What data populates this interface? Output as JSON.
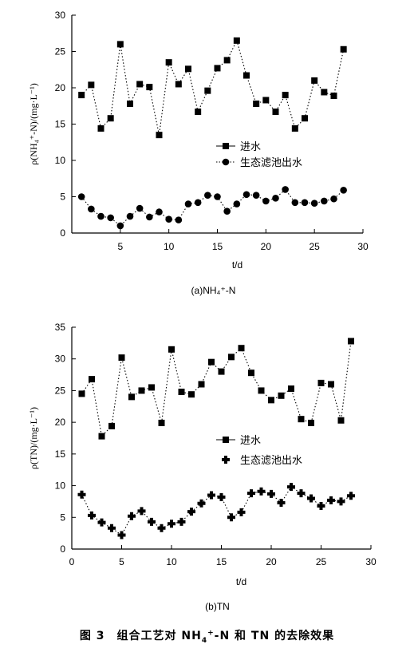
{
  "chart_data": [
    {
      "type": "line",
      "panel_label": "(a)NH₄⁺-N",
      "xlabel": "t/d",
      "ylabel": "ρ(NH₄⁺-N)/(mg·L⁻¹)",
      "xlim": [
        0,
        30
      ],
      "ylim": [
        0,
        30
      ],
      "xticks": [
        "5",
        "10",
        "15",
        "20",
        "25",
        "30"
      ],
      "yticks": [
        "0",
        "5",
        "10",
        "15",
        "20",
        "25",
        "30"
      ],
      "legend_position": "right-middle",
      "series": [
        {
          "name": "进水",
          "marker": "square",
          "x": [
            1,
            2,
            3,
            4,
            5,
            6,
            7,
            8,
            9,
            10,
            11,
            12,
            13,
            14,
            15,
            16,
            17,
            18,
            19,
            20,
            21,
            22,
            23,
            24,
            25,
            26,
            27,
            28
          ],
          "values": [
            19.0,
            20.4,
            14.4,
            15.8,
            26.0,
            17.8,
            20.5,
            20.1,
            13.5,
            23.5,
            20.5,
            22.6,
            16.7,
            19.6,
            22.7,
            23.8,
            26.5,
            21.7,
            17.8,
            18.3,
            16.7,
            19.0,
            14.4,
            15.8,
            21.0,
            19.4,
            18.9,
            25.3
          ]
        },
        {
          "name": "生态滤池出水",
          "marker": "circle",
          "x": [
            1,
            2,
            3,
            4,
            5,
            6,
            7,
            8,
            9,
            10,
            11,
            12,
            13,
            14,
            15,
            16,
            17,
            18,
            19,
            20,
            21,
            22,
            23,
            24,
            25,
            26,
            27,
            28
          ],
          "values": [
            5.0,
            3.3,
            2.3,
            2.1,
            1.0,
            2.3,
            3.4,
            2.2,
            2.9,
            1.9,
            1.8,
            4.0,
            4.2,
            5.2,
            5.0,
            3.0,
            4.0,
            5.3,
            5.2,
            4.4,
            4.8,
            6.0,
            4.2,
            4.2,
            4.1,
            4.4,
            4.7,
            5.9
          ]
        }
      ]
    },
    {
      "type": "line",
      "panel_label": "(b)TN",
      "xlabel": "t/d",
      "ylabel": "ρ(TN)/(mg·L⁻¹)",
      "xlim": [
        0,
        30
      ],
      "ylim": [
        0,
        35
      ],
      "xticks": [
        "0",
        "5",
        "10",
        "15",
        "20",
        "25",
        "30"
      ],
      "yticks": [
        "0",
        "5",
        "10",
        "15",
        "20",
        "25",
        "30",
        "35"
      ],
      "legend_position": "right-middle",
      "series": [
        {
          "name": "进水",
          "marker": "square",
          "x": [
            1,
            2,
            3,
            4,
            5,
            6,
            7,
            8,
            9,
            10,
            11,
            12,
            13,
            14,
            15,
            16,
            17,
            18,
            19,
            20,
            21,
            22,
            23,
            24,
            25,
            26,
            27,
            28
          ],
          "values": [
            24.5,
            26.8,
            17.8,
            19.4,
            30.2,
            24.0,
            25.0,
            25.5,
            19.9,
            31.5,
            24.8,
            24.4,
            26.0,
            29.5,
            28.0,
            30.3,
            31.7,
            27.8,
            25.0,
            23.5,
            24.2,
            25.3,
            20.5,
            19.9,
            26.2,
            26.0,
            20.3,
            32.8
          ]
        },
        {
          "name": "生态滤池出水",
          "marker": "cross",
          "x": [
            1,
            2,
            3,
            4,
            5,
            6,
            7,
            8,
            9,
            10,
            11,
            12,
            13,
            14,
            15,
            16,
            17,
            18,
            19,
            20,
            21,
            22,
            23,
            24,
            25,
            26,
            27,
            28
          ],
          "values": [
            8.6,
            5.3,
            4.2,
            3.3,
            2.2,
            5.2,
            6.0,
            4.3,
            3.3,
            4.0,
            4.3,
            5.9,
            7.2,
            8.5,
            8.2,
            5.0,
            5.8,
            8.8,
            9.1,
            8.7,
            7.3,
            9.8,
            8.8,
            8.0,
            6.8,
            7.7,
            7.5,
            8.4
          ]
        }
      ]
    }
  ],
  "caption": {
    "prefix": "图 3　组合工艺对 NH",
    "sub": "4",
    "sup": "+",
    "suffix": "-N 和 TN 的去除效果"
  }
}
